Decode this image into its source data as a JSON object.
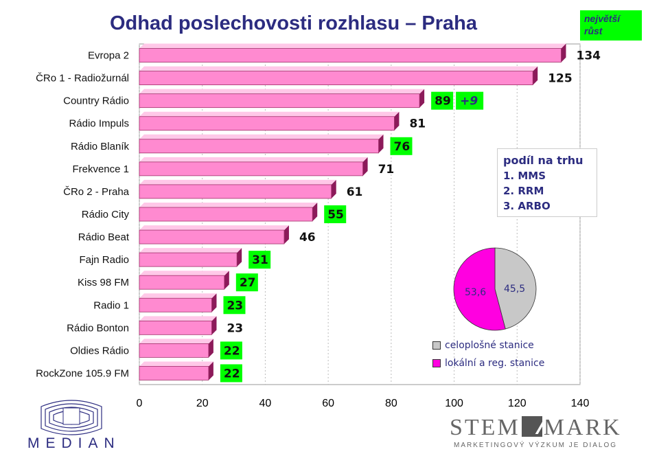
{
  "title": "Odhad poslechovosti rozhlasu – Praha",
  "badge": "největší růst",
  "chart_data": {
    "type": "bar",
    "orientation": "horizontal",
    "categories": [
      "Evropa 2",
      "ČRo 1 - Radiožurnál",
      "Country Rádio",
      "Rádio Impuls",
      "Rádio Blaník",
      "Frekvence 1",
      "ČRo 2 - Praha",
      "Rádio City",
      "Rádio Beat",
      "Fajn Radio",
      "Kiss 98 FM",
      "Radio 1",
      "Rádio Bonton",
      "Oldies Rádio",
      "RockZone 105.9 FM"
    ],
    "values": [
      134,
      125,
      89,
      81,
      76,
      71,
      61,
      55,
      46,
      31,
      27,
      23,
      23,
      22,
      22
    ],
    "highlighted": [
      false,
      false,
      true,
      false,
      true,
      false,
      false,
      true,
      false,
      true,
      true,
      true,
      false,
      true,
      true
    ],
    "growth_annotation": {
      "category": "Country Rádio",
      "text": "+9"
    },
    "xlim": [
      0,
      140
    ],
    "xticks": [
      "0",
      "20",
      "40",
      "60",
      "80",
      "100",
      "120",
      "140"
    ],
    "grid": true,
    "colors": {
      "bar": "#ff8ad0",
      "bar_shadow": "#8c1a5a",
      "highlight": "#00ff00",
      "label_text": "#111111"
    }
  },
  "market_share": {
    "heading": "podíl na trhu",
    "items": [
      "1. MMS",
      "2. RRM",
      "3. ARBO"
    ]
  },
  "pie": {
    "type": "pie",
    "slices": [
      {
        "label": "lokální a reg. stanice",
        "value": 53.6,
        "display": "53,6",
        "color": "#ff00e0"
      },
      {
        "label": "celoplošné stanice",
        "value": 45.5,
        "display": "45,5",
        "color": "#c8c8c8"
      }
    ]
  },
  "logos": {
    "median": "MEDIAN",
    "stemmark_left": "STEM",
    "stemmark_right": "MARK",
    "stemmark_sub": "MARKETINGOVÝ VÝZKUM JE DIALOG"
  }
}
